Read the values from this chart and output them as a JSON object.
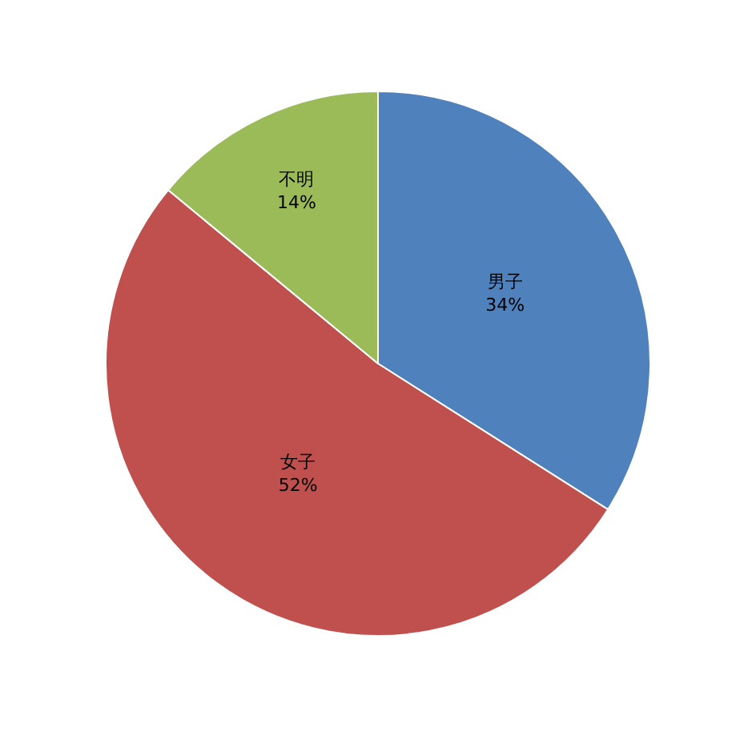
{
  "chart_data": {
    "type": "pie",
    "categories": [
      "男子",
      "女子",
      "不明"
    ],
    "values": [
      34,
      52,
      14
    ],
    "value_labels": [
      "34%",
      "52%",
      "14%"
    ],
    "colors": [
      "#4f81bd",
      "#c0504d",
      "#9bbb59"
    ],
    "legend": false
  }
}
